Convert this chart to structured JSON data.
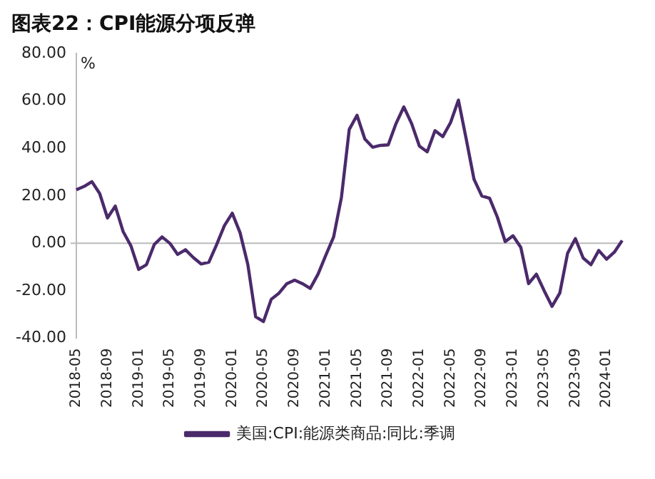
{
  "chart_data": {
    "type": "line",
    "title": "图表22：CPI能源分项反弹",
    "ylabel": "%",
    "categories": [
      "2018-05",
      null,
      null,
      null,
      "2018-09",
      null,
      null,
      null,
      "2019-01",
      null,
      null,
      null,
      "2019-05",
      null,
      null,
      null,
      "2019-09",
      null,
      null,
      null,
      "2020-01",
      null,
      null,
      null,
      "2020-05",
      null,
      null,
      null,
      "2020-09",
      null,
      null,
      null,
      "2021-01",
      null,
      null,
      null,
      "2021-05",
      null,
      null,
      null,
      "2021-09",
      null,
      null,
      null,
      "2022-01",
      null,
      null,
      null,
      "2022-05",
      null,
      null,
      null,
      "2022-09",
      null,
      null,
      null,
      "2023-01",
      null,
      null,
      null,
      "2023-05",
      null,
      null,
      null,
      "2023-09",
      null,
      null,
      null,
      "2024-01",
      null,
      null
    ],
    "series": [
      {
        "name": "美国:CPI:能源类商品:同比:季调",
        "color": "#4b2a6b",
        "values": [
          22.6,
          24,
          26,
          21,
          10.7,
          15.7,
          5,
          -1,
          -11,
          -9,
          -0.5,
          2.7,
          0,
          -4.7,
          -2.7,
          -6,
          -8.7,
          -8,
          -0.5,
          7.5,
          12.7,
          4.5,
          -9,
          -31,
          -33,
          -23.6,
          -21,
          -17,
          -15.5,
          -17,
          -19,
          -13,
          -5,
          2.7,
          19.4,
          48,
          54,
          44,
          40.5,
          41.3,
          41.5,
          50.5,
          57.5,
          50.5,
          41,
          38.6,
          47.5,
          45,
          51,
          60.4,
          44,
          27,
          20,
          19,
          11,
          0.7,
          3.2,
          -1.7,
          -17,
          -13,
          -20,
          -26.6,
          -21,
          -4.2,
          2,
          -6.2,
          -9,
          -3,
          -6.7,
          -3.7,
          1.2
        ]
      }
    ],
    "ylim": [
      -40,
      80
    ],
    "yticks": [
      {
        "value": -40,
        "label": "-40.00"
      },
      {
        "value": -20,
        "label": "-20.00"
      },
      {
        "value": 0,
        "label": "0.00"
      },
      {
        "value": 20,
        "label": "20.00"
      },
      {
        "value": 40,
        "label": "40.00"
      },
      {
        "value": 60,
        "label": "60.00"
      },
      {
        "value": 80,
        "label": "80.00"
      }
    ],
    "ref_lines": [
      {
        "axis": "y",
        "value": 0,
        "color": "#bbbbbb"
      }
    ],
    "grid": false,
    "legend": "bottom",
    "marker": "none",
    "line_style": "solid"
  }
}
